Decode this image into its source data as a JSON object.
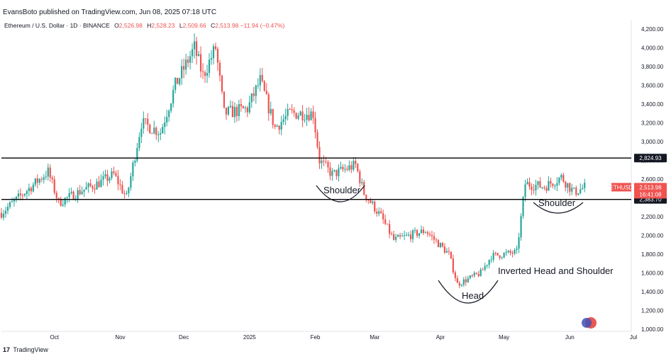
{
  "header": {
    "published": "EvansBoto published on TradingView.com, Jun 08, 2025 07:18 UTC"
  },
  "legend": {
    "symbol": "Ethereum / U.S. Dollar · 1D · BINANCE",
    "open_label": "O",
    "open": "2,526.98",
    "high_label": "H",
    "high": "2,528.23",
    "low_label": "L",
    "low": "2,509.66",
    "close_label": "C",
    "close": "2,513.98",
    "change": "−11.94 (−0.47%)"
  },
  "footer": {
    "logo": "17",
    "brand": "TradingView"
  },
  "colors": {
    "up": "#26a69a",
    "down": "#ef5350",
    "line": "#000000",
    "axis": "#131722"
  },
  "chart_data": {
    "type": "candlestick",
    "y_axis": {
      "ticks": [
        "4,200.00",
        "4,000.00",
        "3,800.00",
        "3,600.00",
        "3,400.00",
        "3,200.00",
        "3,000.00",
        "2,800.00",
        "2,600.00",
        "2,400.00",
        "2,200.00",
        "2,000.00",
        "1,800.00",
        "1,600.00",
        "1,400.00",
        "1,200.00",
        "1,000.00"
      ],
      "tick_values": [
        4200,
        4000,
        3800,
        3600,
        3400,
        3200,
        3000,
        2800,
        2600,
        2400,
        2200,
        2000,
        1800,
        1600,
        1400,
        1200,
        1000
      ],
      "range": [
        1000,
        4250
      ]
    },
    "x_axis": {
      "ticks": [
        "Oct",
        "Nov",
        "Dec",
        "2025",
        "Feb",
        "Mar",
        "Apr",
        "May",
        "Jun",
        "Jul"
      ]
    },
    "levels": [
      {
        "value": 2824.93,
        "label": "2,824.93"
      },
      {
        "value": 2383.7,
        "label": "2,383.70"
      }
    ],
    "last_price": {
      "symbol": "ETHUSD",
      "price": "2,513.98",
      "countdown": "16:41:08"
    },
    "annotations": [
      "Shoulder",
      "Head",
      "Shoulder",
      "Inverted Head and Shoulder"
    ],
    "series_anchors": [
      [
        "2024-09-06",
        2240
      ],
      [
        "2024-09-20",
        2520
      ],
      [
        "2024-09-28",
        2680
      ],
      [
        "2024-10-03",
        2350
      ],
      [
        "2024-10-14",
        2480
      ],
      [
        "2024-10-22",
        2560
      ],
      [
        "2024-10-29",
        2650
      ],
      [
        "2024-11-04",
        2400
      ],
      [
        "2024-11-11",
        3200
      ],
      [
        "2024-11-20",
        3100
      ],
      [
        "2024-11-27",
        3600
      ],
      [
        "2024-12-06",
        4000
      ],
      [
        "2024-12-10",
        3700
      ],
      [
        "2024-12-16",
        4000
      ],
      [
        "2024-12-20",
        3300
      ],
      [
        "2024-12-31",
        3350
      ],
      [
        "2025-01-06",
        3650
      ],
      [
        "2025-01-13",
        3150
      ],
      [
        "2025-01-20",
        3300
      ],
      [
        "2025-01-31",
        3300
      ],
      [
        "2025-02-03",
        2800
      ],
      [
        "2025-02-09",
        2650
      ],
      [
        "2025-02-20",
        2750
      ],
      [
        "2025-02-24",
        2450
      ],
      [
        "2025-03-04",
        2200
      ],
      [
        "2025-03-10",
        1950
      ],
      [
        "2025-03-25",
        2050
      ],
      [
        "2025-04-05",
        1800
      ],
      [
        "2025-04-09",
        1480
      ],
      [
        "2025-04-20",
        1600
      ],
      [
        "2025-04-25",
        1780
      ],
      [
        "2025-05-07",
        1820
      ],
      [
        "2025-05-11",
        2550
      ],
      [
        "2025-05-20",
        2520
      ],
      [
        "2025-05-28",
        2620
      ],
      [
        "2025-06-03",
        2460
      ],
      [
        "2025-06-08",
        2514
      ]
    ]
  }
}
